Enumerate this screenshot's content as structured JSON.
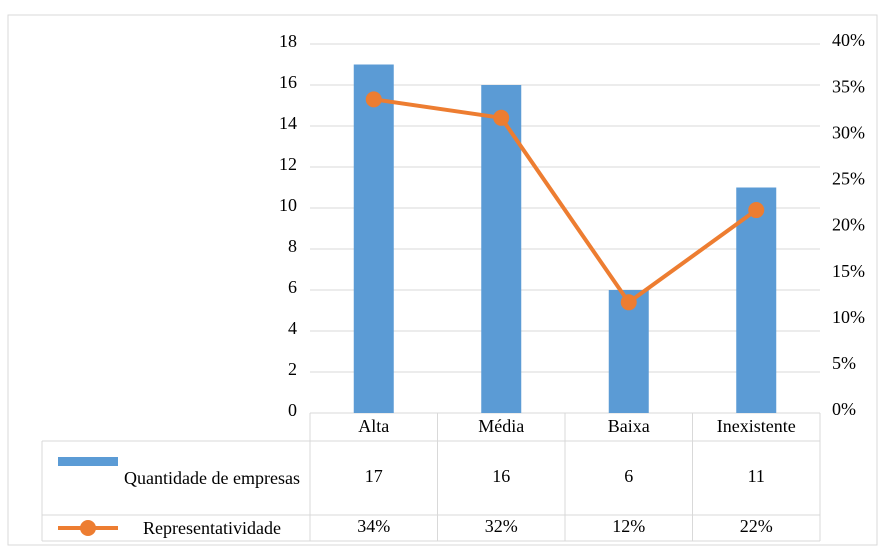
{
  "chart_data": {
    "type": "bar",
    "categories": [
      "Alta",
      "Média",
      "Baixa",
      "Inexistente"
    ],
    "series": [
      {
        "name": "Quantidade de empresas",
        "color": "#5b9bd5",
        "values": [
          17,
          16,
          6,
          11
        ]
      },
      {
        "name": "Representatividade",
        "color": "#ed7d31",
        "axis": "y2",
        "values": [
          34,
          32,
          12,
          22
        ],
        "value_labels": [
          "34%",
          "32%",
          "12%",
          "22%"
        ]
      }
    ],
    "ylim": [
      0,
      18
    ],
    "yticks": [
      0,
      2,
      4,
      6,
      8,
      10,
      12,
      14,
      16,
      18
    ],
    "y2lim": [
      0,
      40
    ],
    "y2ticks": [
      {
        "value": 0,
        "label": "0%"
      },
      {
        "value": 5,
        "label": "5%"
      },
      {
        "value": 10,
        "label": "10%"
      },
      {
        "value": 15,
        "label": "15%"
      },
      {
        "value": 20,
        "label": "20%"
      },
      {
        "value": 25,
        "label": "25%"
      },
      {
        "value": 30,
        "label": "30%"
      },
      {
        "value": 35,
        "label": "35%"
      },
      {
        "value": 40,
        "label": "40%"
      }
    ],
    "grid": true
  }
}
